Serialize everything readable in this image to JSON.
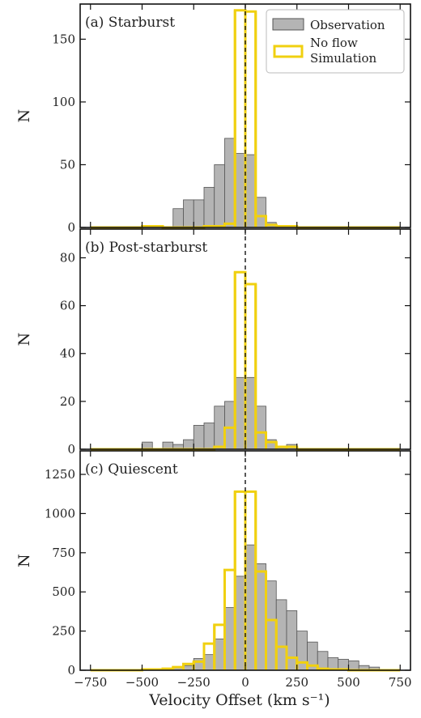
{
  "chart_data": {
    "type": "bar",
    "xlabel": "Velocity Offset (km s⁻¹)",
    "xlim": [
      -800,
      800
    ],
    "xticks": [
      -750,
      -500,
      -250,
      0,
      250,
      500,
      750
    ],
    "tick_labels_x": [
      "−750",
      "−500",
      "−250",
      "0",
      "250",
      "500",
      "750"
    ],
    "bin_width": 50,
    "bin_starts": [
      -750,
      -700,
      -650,
      -600,
      -550,
      -500,
      -450,
      -400,
      -350,
      -300,
      -250,
      -200,
      -150,
      -100,
      -50,
      0,
      50,
      100,
      150,
      200,
      250,
      300,
      350,
      400,
      450,
      500,
      550,
      600,
      650,
      700
    ],
    "zero_line": 0,
    "legend": {
      "placement": "top-right",
      "entries": [
        {
          "label": "Observation",
          "color": "#b4b4b4",
          "edge": "#555555"
        },
        {
          "label": "No flow\nSimulation",
          "color": "#f0d010"
        }
      ]
    },
    "panels": [
      {
        "label": "(a) Starburst",
        "ylabel": "N",
        "ylim": [
          0,
          178
        ],
        "yticks": [
          0,
          50,
          100,
          150
        ],
        "series": [
          {
            "name": "Observation",
            "values": [
              0,
              0,
              0,
              0,
              0,
              0,
              0,
              0,
              15,
              22,
              22,
              32,
              50,
              71,
              59,
              58,
              24,
              4,
              1,
              0,
              0,
              0,
              0,
              0,
              0,
              0,
              0,
              0,
              0,
              0
            ]
          },
          {
            "name": "No flow\nSimulation",
            "values": [
              0,
              0,
              0,
              0,
              0,
              1,
              1,
              0,
              0,
              0,
              0,
              1,
              1,
              3,
              173,
              172,
              9,
              2,
              1,
              1,
              0,
              0,
              0,
              0,
              0,
              0,
              0,
              0,
              0,
              0
            ]
          }
        ]
      },
      {
        "label": "(b) Post-starburst",
        "ylabel": "N",
        "ylim": [
          0,
          92
        ],
        "yticks": [
          0,
          20,
          40,
          60,
          80
        ],
        "series": [
          {
            "name": "Observation",
            "values": [
              0,
              0,
              0,
              0,
              0,
              3,
              0,
              3,
              2,
              4,
              10,
              11,
              18,
              20,
              30,
              30,
              18,
              4,
              1,
              2,
              0,
              0,
              0,
              0,
              0,
              0,
              0,
              0,
              0,
              0
            ]
          },
          {
            "name": "No flow\nSimulation",
            "values": [
              0,
              0,
              0,
              0,
              0,
              0,
              0,
              0,
              0,
              0,
              0,
              0,
              1,
              9,
              74,
              69,
              7,
              3,
              1,
              1,
              0,
              0,
              0,
              0,
              0,
              0,
              0,
              0,
              0,
              0
            ]
          }
        ]
      },
      {
        "label": "(c) Quiescent",
        "ylabel": "N",
        "ylim": [
          0,
          1400
        ],
        "yticks": [
          0,
          250,
          500,
          750,
          1000,
          1250
        ],
        "series": [
          {
            "name": "Observation",
            "values": [
              0,
              0,
              0,
              0,
              0,
              0,
              2,
              5,
              15,
              30,
              75,
              100,
              200,
              400,
              600,
              800,
              680,
              570,
              450,
              380,
              250,
              180,
              120,
              80,
              70,
              60,
              30,
              20,
              0,
              0
            ]
          },
          {
            "name": "No flow\nSimulation",
            "values": [
              0,
              0,
              0,
              0,
              0,
              5,
              5,
              10,
              20,
              40,
              55,
              170,
              290,
              640,
              1140,
              1140,
              630,
              320,
              150,
              80,
              50,
              30,
              10,
              5,
              5,
              0,
              0,
              0,
              0,
              0
            ]
          }
        ]
      }
    ]
  }
}
